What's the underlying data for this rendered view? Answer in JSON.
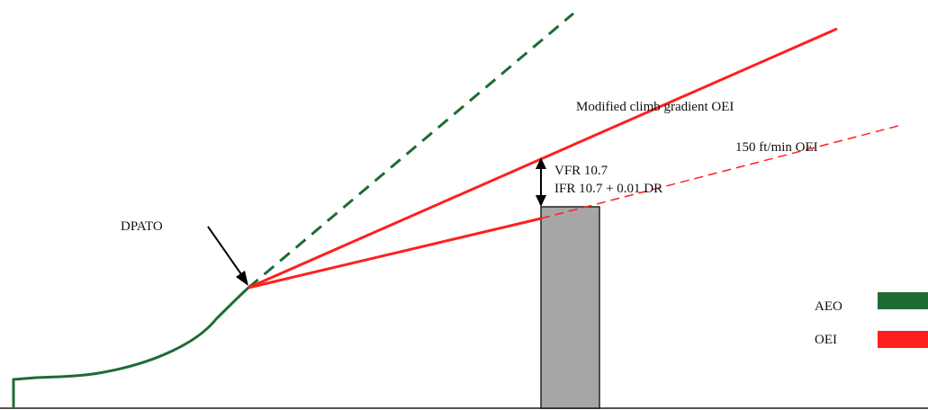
{
  "labels": {
    "dpato": "DPATO",
    "modified_climb": "Modified climb gradient OEI",
    "fpm_oei": "150 ft/min OEI",
    "vfr": "VFR 10.7",
    "ifr": "IFR 10.7 + 0.01 DR"
  },
  "legend": {
    "aeo": "AEO",
    "oei": "OEI"
  },
  "colors": {
    "aeo": "#1e6b35",
    "oei": "#ff1f1f",
    "obstacle_fill": "#a6a6a6",
    "obstacle_stroke": "#222222",
    "ground": "#555555",
    "arrow": "#000000"
  }
}
